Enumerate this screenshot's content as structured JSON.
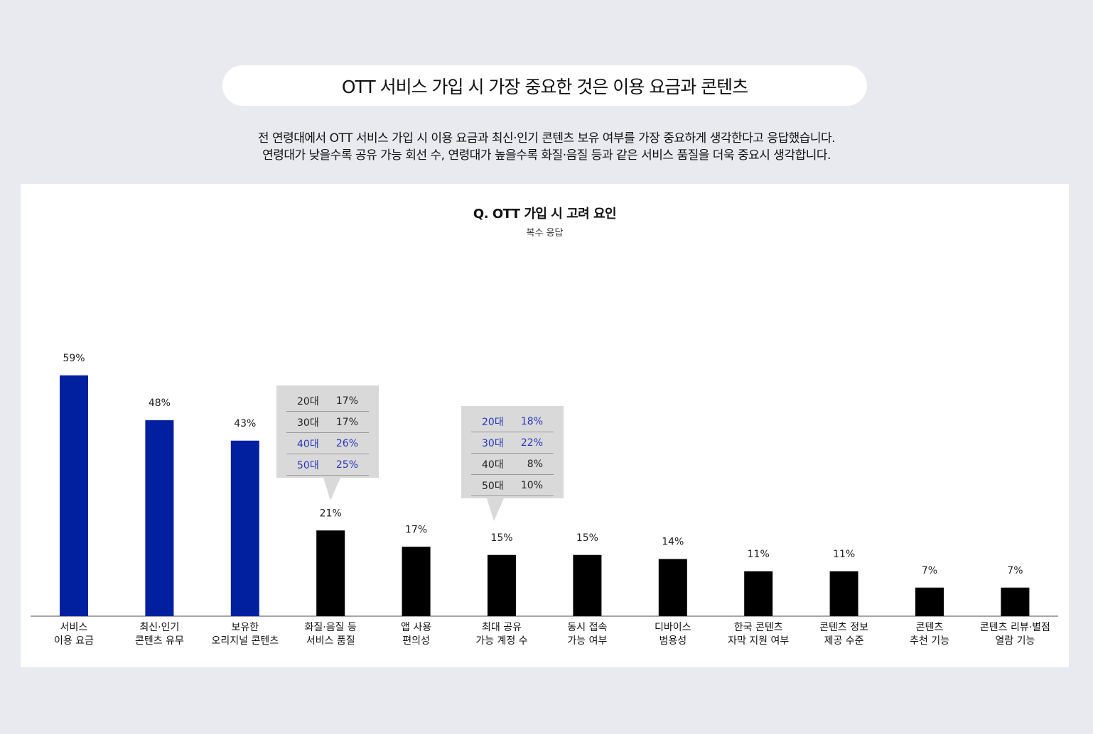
{
  "header": {
    "title": "OTT 서비스 가입 시 가장 중요한 것은 이용 요금과 콘텐츠",
    "description": [
      "전 연령대에서 OTT 서비스 가입 시 이용 요금과 최신·인기 콘텐츠 보유 여부를 가장 중요하게 생각한다고 응답했습니다.",
      "연령대가 낮을수록 공유 가능 회선 수, 연령대가 높을수록 화질·음질 등과 같은 서비스 품질을 더욱 중요시 생각합니다."
    ]
  },
  "colors": {
    "highlight": "#0020a0",
    "default": "#000000",
    "callout_highlight": "#2a35b8",
    "background": "#e9eaef"
  },
  "chart_data": {
    "type": "bar",
    "title": "Q. OTT 가입 시 고려 요인",
    "subtitle": "복수 응답",
    "categories": [
      [
        "서비스",
        "이용 요금"
      ],
      [
        "최신·인기",
        "콘텐츠 유무"
      ],
      [
        "보유한",
        "오리지널 콘텐츠"
      ],
      [
        "화질·음질 등",
        "서비스 품질"
      ],
      [
        "앱 사용",
        "편의성"
      ],
      [
        "최대 공유",
        "가능 계정 수"
      ],
      [
        "동시 접속",
        "가능 여부"
      ],
      [
        "디바이스",
        "범용성"
      ],
      [
        "한국 콘텐츠",
        "자막 지원 여부"
      ],
      [
        "콘텐츠 정보",
        "제공 수준"
      ],
      [
        "콘텐츠",
        "추천 기능"
      ],
      [
        "콘텐츠 리뷰·별점",
        "열람 기능"
      ]
    ],
    "values": [
      59,
      48,
      43,
      21,
      17,
      15,
      15,
      14,
      11,
      11,
      7,
      7
    ],
    "value_suffix": "%",
    "highlighted": [
      true,
      true,
      true,
      false,
      false,
      false,
      false,
      false,
      false,
      false,
      false,
      false
    ],
    "ylim": [
      0,
      80
    ],
    "grid": false,
    "legend": "none",
    "callouts": [
      {
        "category_index": 3,
        "rows": [
          {
            "age": "20대",
            "value": "17%",
            "highlight": false
          },
          {
            "age": "30대",
            "value": "17%",
            "highlight": false
          },
          {
            "age": "40대",
            "value": "26%",
            "highlight": true
          },
          {
            "age": "50대",
            "value": "25%",
            "highlight": true
          }
        ]
      },
      {
        "category_index": 5,
        "rows": [
          {
            "age": "20대",
            "value": "18%",
            "highlight": true
          },
          {
            "age": "30대",
            "value": "22%",
            "highlight": true
          },
          {
            "age": "40대",
            "value": "8%",
            "highlight": false
          },
          {
            "age": "50대",
            "value": "10%",
            "highlight": false
          }
        ]
      }
    ]
  }
}
